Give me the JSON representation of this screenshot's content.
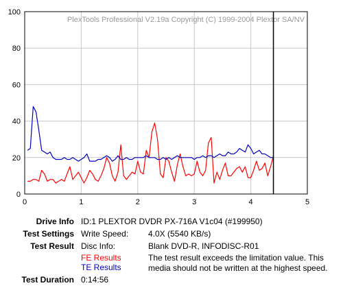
{
  "chart_data": {
    "type": "line",
    "watermark": "PlexTools Professional V2.19a Copyright (C) 1999-2004 Plextor SA/NV",
    "xlim": [
      0,
      5
    ],
    "ylim": [
      0,
      100
    ],
    "x_ticks": [
      "0",
      "1",
      "2",
      "3",
      "4",
      "5"
    ],
    "y_ticks": [
      "0",
      "20",
      "40",
      "60",
      "80",
      "100"
    ],
    "grid": true,
    "end_marker_x": 4.4,
    "series": [
      {
        "name": "FE Results",
        "color": "#ff0000",
        "x": [
          0.05,
          0.1,
          0.15,
          0.2,
          0.25,
          0.3,
          0.35,
          0.4,
          0.45,
          0.5,
          0.55,
          0.6,
          0.65,
          0.7,
          0.75,
          0.8,
          0.85,
          0.9,
          0.95,
          1.0,
          1.05,
          1.1,
          1.15,
          1.2,
          1.25,
          1.3,
          1.35,
          1.4,
          1.45,
          1.5,
          1.55,
          1.6,
          1.65,
          1.7,
          1.75,
          1.8,
          1.85,
          1.9,
          1.95,
          2.0,
          2.05,
          2.1,
          2.15,
          2.2,
          2.25,
          2.3,
          2.35,
          2.4,
          2.45,
          2.5,
          2.55,
          2.6,
          2.65,
          2.7,
          2.75,
          2.8,
          2.85,
          2.9,
          2.95,
          3.0,
          3.05,
          3.1,
          3.15,
          3.2,
          3.25,
          3.3,
          3.35,
          3.4,
          3.45,
          3.5,
          3.55,
          3.6,
          3.65,
          3.7,
          3.75,
          3.8,
          3.85,
          3.9,
          3.95,
          4.0,
          4.05,
          4.1,
          4.15,
          4.2,
          4.25,
          4.3,
          4.35,
          4.4
        ],
        "y": [
          7,
          7,
          8,
          8,
          7,
          13,
          11,
          7,
          8,
          8,
          6,
          7,
          8,
          7,
          11,
          15,
          8,
          10,
          12,
          9,
          6,
          9,
          13,
          11,
          8,
          7,
          10,
          14,
          20,
          17,
          10,
          7,
          12,
          27,
          10,
          8,
          10,
          12,
          11,
          18,
          12,
          11,
          24,
          20,
          34,
          39,
          30,
          11,
          9,
          20,
          18,
          12,
          7,
          16,
          22,
          15,
          10,
          11,
          10,
          11,
          18,
          12,
          10,
          13,
          28,
          31,
          6,
          12,
          8,
          13,
          17,
          10,
          10,
          12,
          14,
          15,
          12,
          15,
          9,
          9,
          13,
          18,
          13,
          14,
          17,
          10,
          15,
          21
        ]
      },
      {
        "name": "TE Results",
        "color": "#0000c0",
        "x": [
          0.05,
          0.1,
          0.15,
          0.2,
          0.25,
          0.3,
          0.35,
          0.4,
          0.45,
          0.5,
          0.55,
          0.6,
          0.65,
          0.7,
          0.75,
          0.8,
          0.85,
          0.9,
          0.95,
          1.0,
          1.05,
          1.1,
          1.15,
          1.2,
          1.25,
          1.3,
          1.35,
          1.4,
          1.45,
          1.5,
          1.55,
          1.6,
          1.65,
          1.7,
          1.75,
          1.8,
          1.85,
          1.9,
          1.95,
          2.0,
          2.05,
          2.1,
          2.15,
          2.2,
          2.25,
          2.3,
          2.35,
          2.4,
          2.45,
          2.5,
          2.55,
          2.6,
          2.65,
          2.7,
          2.75,
          2.8,
          2.85,
          2.9,
          2.95,
          3.0,
          3.05,
          3.1,
          3.15,
          3.2,
          3.25,
          3.3,
          3.35,
          3.4,
          3.45,
          3.5,
          3.55,
          3.6,
          3.65,
          3.7,
          3.75,
          3.8,
          3.85,
          3.9,
          3.95,
          4.0,
          4.05,
          4.1,
          4.15,
          4.2,
          4.25,
          4.3,
          4.35,
          4.4
        ],
        "y": [
          24,
          25,
          48,
          45,
          35,
          24,
          23,
          22,
          23,
          20,
          19,
          19,
          19,
          20,
          19,
          19,
          20,
          19,
          18,
          19,
          20,
          22,
          18,
          18,
          18,
          19,
          19,
          20,
          21,
          20,
          18,
          19,
          21,
          19,
          19,
          20,
          19,
          19,
          20,
          20,
          20,
          20,
          21,
          20,
          20,
          20,
          19,
          19,
          20,
          19,
          20,
          19,
          20,
          21,
          20,
          20,
          20,
          20,
          20,
          19,
          20,
          20,
          21,
          20,
          21,
          21,
          20,
          21,
          22,
          21,
          21,
          23,
          22,
          22,
          23,
          25,
          24,
          23,
          27,
          25,
          22,
          23,
          24,
          22,
          22,
          21,
          20,
          20
        ]
      }
    ]
  },
  "info": {
    "drive_info_label": "Drive Info",
    "drive_info_value": "ID:1 PLEXTOR DVDR PX-716A V1c04 (#199950)",
    "test_settings_label": "Test Settings",
    "write_speed_label": "Write Speed:",
    "write_speed_value": "4.0X (5540 KB/s)",
    "test_result_label": "Test Result",
    "disc_info_label": "Disc Info:",
    "disc_info_value": "Blank DVD-R, INFODISC-R01",
    "fe_results_label": "FE Results",
    "te_results_label": "TE Results",
    "result_message": "The test result exceeds the limitation value. This media should not be written at the highest speed.",
    "test_duration_label": "Test Duration",
    "test_duration_value": "0:14:56"
  }
}
